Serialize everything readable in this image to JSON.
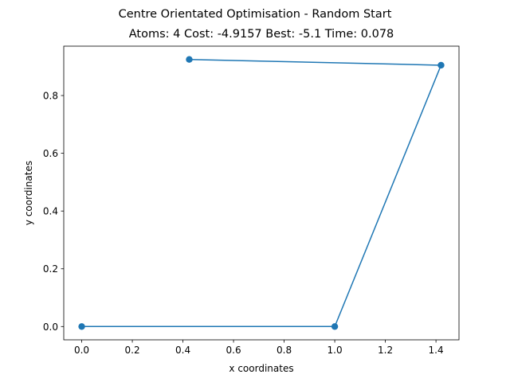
{
  "chart_data": {
    "type": "line",
    "title": "Centre Orientated Optimisation - Random Start",
    "subtitle": "Atoms: 4 Cost: -4.9157 Best: -5.1 Time: 0.078",
    "xlabel": "x coordinates",
    "ylabel": "y coordinates",
    "xlim": [
      -0.071,
      1.491
    ],
    "ylim": [
      -0.046,
      0.971
    ],
    "x_ticks": [
      0.0,
      0.2,
      0.4,
      0.6,
      0.8,
      1.0,
      1.2,
      1.4
    ],
    "x_tick_labels": [
      "0.0",
      "0.2",
      "0.4",
      "0.6",
      "0.8",
      "1.0",
      "1.2",
      "1.4"
    ],
    "y_ticks": [
      0.0,
      0.2,
      0.4,
      0.6,
      0.8
    ],
    "y_tick_labels": [
      "0.0",
      "0.2",
      "0.4",
      "0.6",
      "0.8"
    ],
    "grid": false,
    "marker": "circle",
    "line_color": "#1f77b4",
    "series": [
      {
        "x": [
          0.0,
          1.0,
          1.42,
          0.425
        ],
        "y": [
          0.0,
          0.0,
          0.905,
          0.925
        ]
      }
    ]
  }
}
